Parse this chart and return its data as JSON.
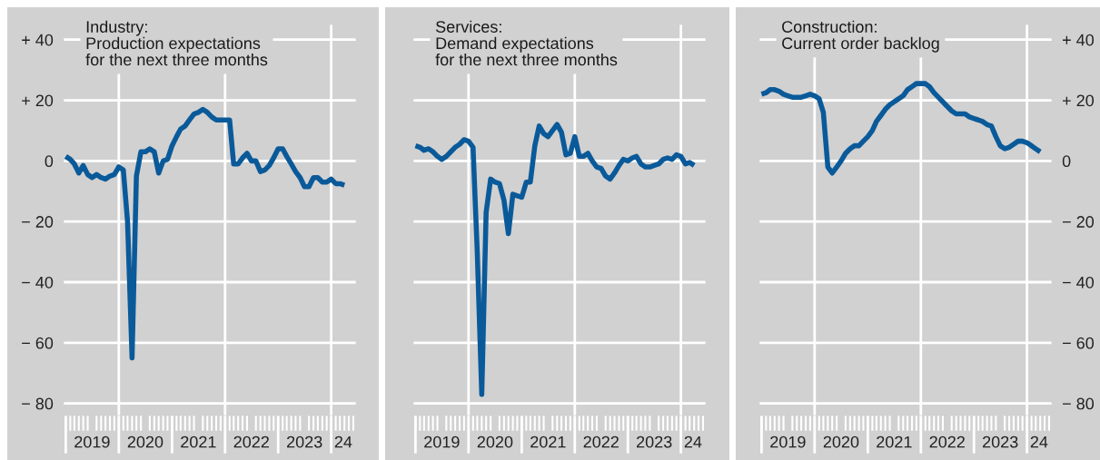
{
  "chart_data": [
    {
      "type": "line",
      "title": "Industry:\nProduction expectations\nfor the next three months",
      "x": [
        "2019-01",
        "2019-02",
        "2019-03",
        "2019-04",
        "2019-05",
        "2019-06",
        "2019-07",
        "2019-08",
        "2019-09",
        "2019-10",
        "2019-11",
        "2019-12",
        "2020-01",
        "2020-02",
        "2020-03",
        "2020-04",
        "2020-05",
        "2020-06",
        "2020-07",
        "2020-08",
        "2020-09",
        "2020-10",
        "2020-11",
        "2020-12",
        "2021-01",
        "2021-02",
        "2021-03",
        "2021-04",
        "2021-05",
        "2021-06",
        "2021-07",
        "2021-08",
        "2021-09",
        "2021-10",
        "2021-11",
        "2021-12",
        "2022-01",
        "2022-02",
        "2022-03",
        "2022-04",
        "2022-05",
        "2022-06",
        "2022-07",
        "2022-08",
        "2022-09",
        "2022-10",
        "2022-11",
        "2022-12",
        "2023-01",
        "2023-02",
        "2023-03",
        "2023-04",
        "2023-05",
        "2023-06",
        "2023-07",
        "2023-08",
        "2023-09",
        "2023-10",
        "2023-11",
        "2023-12",
        "2024-01",
        "2024-02",
        "2024-03",
        "2024-04"
      ],
      "series": [
        {
          "color": "#0a5a9a",
          "values": [
            1.5,
            0.5,
            -1,
            -4,
            -1.5,
            -4.5,
            -5.5,
            -4.5,
            -5.5,
            -6,
            -5,
            -4.5,
            -2,
            -3,
            -20,
            -65,
            -5,
            3,
            3,
            4,
            3,
            -4,
            0,
            0.5,
            5,
            8,
            10.5,
            11.5,
            13.5,
            15.5,
            16,
            17,
            16,
            14.5,
            13.5,
            13.5,
            13.5,
            13.5,
            -1,
            -1,
            1,
            2.5,
            0,
            0,
            -3.5,
            -3,
            -1.5,
            1,
            4,
            4,
            1.5,
            -1,
            -3.5,
            -5.5,
            -8.5,
            -8.5,
            -5.5,
            -5.5,
            -7,
            -7,
            -6,
            -7.5,
            -7.5,
            -8
          ]
        }
      ],
      "xlim": [
        "2018-12-17",
        "2024-06-20"
      ],
      "xticks": [
        {
          "value": "2019-07-01",
          "label": "2019"
        },
        {
          "value": "2020-07-01",
          "label": "2020"
        },
        {
          "value": "2021-07-01",
          "label": "2021"
        },
        {
          "value": "2022-07-01",
          "label": "2022"
        },
        {
          "value": "2023-07-01",
          "label": "2023"
        },
        {
          "value": "2024-03-24",
          "label": "24"
        }
      ],
      "ylim": [
        -84,
        45
      ],
      "yticks": [
        {
          "value": 40,
          "label": "+ 40"
        },
        {
          "value": 20,
          "label": "+ 20"
        },
        0,
        {
          "value": -20,
          "label": "− 20"
        },
        {
          "value": -40,
          "label": "− 40"
        },
        {
          "value": -60,
          "label": "− 60"
        },
        {
          "value": -80,
          "label": "− 80"
        }
      ],
      "ref_lines": [
        {
          "axis": "x",
          "value": "2020-01-01",
          "color": "#ffffff"
        },
        {
          "axis": "x",
          "value": "2022-01-01",
          "color": "#ffffff"
        },
        {
          "axis": "x",
          "value": "2024-01-01",
          "color": "#ffffff"
        }
      ],
      "grid": "y",
      "line_style": "solid"
    },
    {
      "type": "line",
      "title": "Services:\nDemand expectations\nfor the next three months",
      "x": [
        "2019-01",
        "2019-02",
        "2019-03",
        "2019-04",
        "2019-05",
        "2019-06",
        "2019-07",
        "2019-08",
        "2019-09",
        "2019-10",
        "2019-11",
        "2019-12",
        "2020-01",
        "2020-02",
        "2020-03",
        "2020-04",
        "2020-05",
        "2020-06",
        "2020-07",
        "2020-08",
        "2020-09",
        "2020-10",
        "2020-11",
        "2020-12",
        "2021-01",
        "2021-02",
        "2021-03",
        "2021-04",
        "2021-05",
        "2021-06",
        "2021-07",
        "2021-08",
        "2021-09",
        "2021-10",
        "2021-11",
        "2021-12",
        "2022-01",
        "2022-02",
        "2022-03",
        "2022-04",
        "2022-05",
        "2022-06",
        "2022-07",
        "2022-08",
        "2022-09",
        "2022-10",
        "2022-11",
        "2022-12",
        "2023-01",
        "2023-02",
        "2023-03",
        "2023-04",
        "2023-05",
        "2023-06",
        "2023-07",
        "2023-08",
        "2023-09",
        "2023-10",
        "2023-11",
        "2023-12",
        "2024-01",
        "2024-02",
        "2024-03",
        "2024-04"
      ],
      "series": [
        {
          "color": "#0a5a9a",
          "values": [
            5,
            4.5,
            3.5,
            4,
            3,
            1.5,
            0.5,
            1.5,
            3,
            4.5,
            5.5,
            7,
            6.5,
            4.5,
            -30,
            -77,
            -17,
            -6,
            -7,
            -7.5,
            -13,
            -24,
            -11,
            -11.5,
            -12,
            -7,
            -7,
            5,
            11.5,
            9,
            8,
            10,
            12,
            9.5,
            2,
            2.5,
            8,
            1.5,
            1.5,
            2.5,
            0,
            -2,
            -2.5,
            -5,
            -6,
            -4,
            -1.5,
            0.5,
            0,
            1,
            1.5,
            -1,
            -2,
            -2,
            -1.5,
            -1,
            0.5,
            1,
            0.5,
            2,
            1.5,
            -1,
            -0.5,
            -1.5
          ]
        }
      ],
      "xlim": [
        "2018-12-17",
        "2024-06-20"
      ],
      "xticks": [
        {
          "value": "2019-07-01",
          "label": "2019"
        },
        {
          "value": "2020-07-01",
          "label": "2020"
        },
        {
          "value": "2021-07-01",
          "label": "2021"
        },
        {
          "value": "2022-07-01",
          "label": "2022"
        },
        {
          "value": "2023-07-01",
          "label": "2023"
        },
        {
          "value": "2024-03-24",
          "label": "24"
        }
      ],
      "ylim": [
        -84,
        45
      ],
      "yticks": [
        {
          "value": 40,
          "label": null
        },
        {
          "value": 20,
          "label": null
        },
        {
          "value": 0,
          "label": null
        },
        {
          "value": -20,
          "label": null
        },
        {
          "value": -40,
          "label": null
        },
        {
          "value": -60,
          "label": null
        },
        {
          "value": -80,
          "label": null
        }
      ],
      "ref_lines": [
        {
          "axis": "x",
          "value": "2020-01-01",
          "color": "#ffffff"
        },
        {
          "axis": "x",
          "value": "2022-01-01",
          "color": "#ffffff"
        },
        {
          "axis": "x",
          "value": "2024-01-01",
          "color": "#ffffff"
        }
      ],
      "grid": "y",
      "line_style": "solid",
      "tick_labels": "x"
    },
    {
      "type": "line",
      "title": "Construction:\nCurrent order backlog",
      "x": [
        "2019-01",
        "2019-02",
        "2019-03",
        "2019-04",
        "2019-05",
        "2019-06",
        "2019-07",
        "2019-08",
        "2019-09",
        "2019-10",
        "2019-11",
        "2019-12",
        "2020-01",
        "2020-02",
        "2020-03",
        "2020-04",
        "2020-05",
        "2020-06",
        "2020-07",
        "2020-08",
        "2020-09",
        "2020-10",
        "2020-11",
        "2020-12",
        "2021-01",
        "2021-02",
        "2021-03",
        "2021-04",
        "2021-05",
        "2021-06",
        "2021-07",
        "2021-08",
        "2021-09",
        "2021-10",
        "2021-11",
        "2021-12",
        "2022-01",
        "2022-02",
        "2022-03",
        "2022-04",
        "2022-05",
        "2022-06",
        "2022-07",
        "2022-08",
        "2022-09",
        "2022-10",
        "2022-11",
        "2022-12",
        "2023-01",
        "2023-02",
        "2023-03",
        "2023-04",
        "2023-05",
        "2023-06",
        "2023-07",
        "2023-08",
        "2023-09",
        "2023-10",
        "2023-11",
        "2023-12",
        "2024-01",
        "2024-02",
        "2024-03",
        "2024-04"
      ],
      "series": [
        {
          "color": "#0a5a9a",
          "values": [
            22,
            22.5,
            23.5,
            23.5,
            23,
            22,
            21.5,
            21,
            21,
            21,
            21.5,
            22,
            21.5,
            20.5,
            16,
            -2,
            -4,
            -2,
            0,
            2.5,
            4,
            5,
            5,
            6.5,
            8,
            10,
            13,
            15,
            17,
            18.5,
            19.5,
            20.5,
            21.5,
            23.5,
            24.5,
            25.5,
            25.5,
            25.5,
            24.5,
            22.5,
            21,
            19.5,
            18,
            16.5,
            15.5,
            15.5,
            15.5,
            14.5,
            14,
            13.5,
            13,
            12,
            11.5,
            8,
            5,
            4,
            4.5,
            5.5,
            6.5,
            6.5,
            6,
            5,
            4,
            3
          ]
        }
      ],
      "xlim": [
        "2018-12-17",
        "2024-06-20"
      ],
      "xticks": [
        {
          "value": "2019-07-01",
          "label": "2019"
        },
        {
          "value": "2020-07-01",
          "label": "2020"
        },
        {
          "value": "2021-07-01",
          "label": "2021"
        },
        {
          "value": "2022-07-01",
          "label": "2022"
        },
        {
          "value": "2023-07-01",
          "label": "2023"
        },
        {
          "value": "2024-03-24",
          "label": "24"
        }
      ],
      "ylim": [
        -84,
        45
      ],
      "yticks": [
        {
          "value": 40,
          "label": "+ 40"
        },
        {
          "value": 20,
          "label": "+ 20"
        },
        0,
        {
          "value": -20,
          "label": "− 20"
        },
        {
          "value": -40,
          "label": "− 40"
        },
        {
          "value": -60,
          "label": "− 60"
        },
        {
          "value": -80,
          "label": "− 80"
        }
      ],
      "ref_lines": [
        {
          "axis": "x",
          "value": "2020-01-01",
          "color": "#ffffff"
        },
        {
          "axis": "x",
          "value": "2022-01-01",
          "color": "#ffffff"
        },
        {
          "axis": "x",
          "value": "2024-01-01",
          "color": "#ffffff"
        }
      ],
      "grid": "y",
      "line_style": "solid"
    }
  ]
}
